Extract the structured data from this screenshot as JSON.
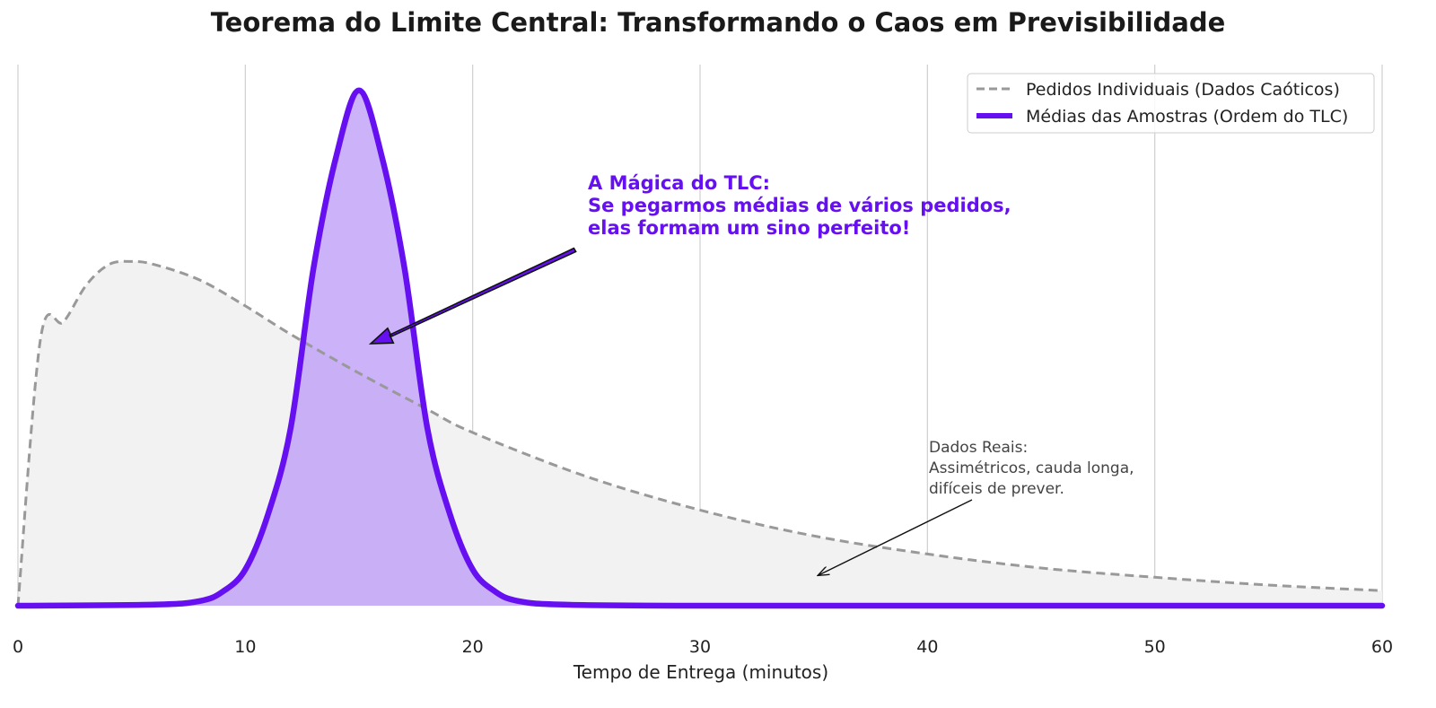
{
  "chart_data": {
    "type": "area",
    "title": "Teorema do Limite Central: Transformando o Caos em Previsibilidade",
    "xlabel": "Tempo de Entrega (minutos)",
    "ylabel": "",
    "xlim": [
      0,
      60
    ],
    "xticks": [
      0,
      10,
      20,
      30,
      40,
      50,
      60
    ],
    "grid": "vertical",
    "legend_position": "top-right",
    "series": [
      {
        "name": "Pedidos Individuais (Dados Caóticos)",
        "style": "dashed",
        "color": "#999999",
        "fill": "#f2f2f2",
        "x": [
          0,
          1,
          2,
          3,
          4,
          5,
          6,
          8,
          10,
          12,
          15,
          18,
          20,
          25,
          30,
          35,
          40,
          45,
          50,
          55,
          60
        ],
        "y": [
          0,
          0.0518,
          0.0549,
          0.062,
          0.066,
          0.0666,
          0.066,
          0.063,
          0.058,
          0.0525,
          0.045,
          0.038,
          0.0335,
          0.025,
          0.0185,
          0.0135,
          0.01,
          0.0073,
          0.0055,
          0.004,
          0.0029
        ]
      },
      {
        "name": "Médias das Amostras (Ordem do TLC)",
        "style": "solid",
        "color": "#6610f2",
        "fill": "#b794f6",
        "x": [
          0,
          6,
          8,
          9,
          10,
          11,
          12,
          13,
          14,
          15,
          16,
          17,
          18,
          19,
          20,
          21,
          22,
          24,
          30,
          40,
          50,
          60
        ],
        "y": [
          0,
          0.0002,
          0.0009,
          0.0027,
          0.007,
          0.0177,
          0.0345,
          0.0653,
          0.087,
          0.0997,
          0.087,
          0.0653,
          0.0345,
          0.0177,
          0.007,
          0.0027,
          0.0009,
          0.0002,
          0,
          0,
          0,
          0
        ]
      }
    ],
    "annotations": [
      {
        "text_lines": [
          "A Mágica do TLC:",
          "Se pegarmos médias de vários pedidos,",
          "elas formam um sino perfeito!"
        ],
        "color": "#6610f2",
        "point_to": [
          15.5,
          0.051
        ]
      },
      {
        "text_lines": [
          "Dados Reais:",
          "Assimétricos, cauda longa,",
          "difíceis de prever."
        ],
        "color": "#444444",
        "point_to": [
          35,
          0.006
        ]
      }
    ]
  }
}
